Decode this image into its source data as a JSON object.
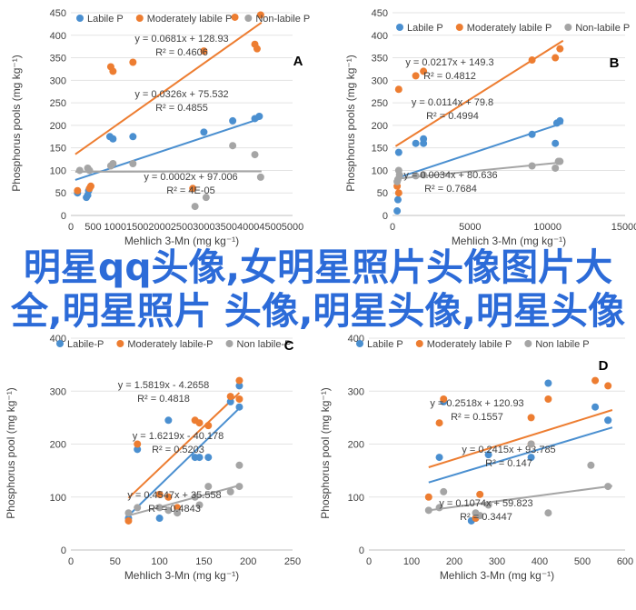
{
  "colors": {
    "labile": "#4a8fd0",
    "moderate": "#ed7d31",
    "nonlabile": "#a5a5a5"
  },
  "overlay_title": "明星qq头像,女明星照片头像图片大全,明星照片 头像,明星头像,明星头像",
  "chart_data": [
    {
      "type": "scatter",
      "panel": "A",
      "xlabel": "Mehlich 3-Mn (mg kg⁻¹)",
      "ylabel": "Phosphorus pools (mg kg⁻¹)",
      "xlim": [
        0,
        5000
      ],
      "ylim": [
        0,
        450
      ],
      "xticks": [
        0,
        500,
        1000,
        1500,
        2000,
        2500,
        3000,
        3500,
        4000,
        4500,
        5000
      ],
      "yticks": [
        0,
        50,
        100,
        150,
        200,
        250,
        300,
        350,
        400,
        450
      ],
      "grid": true,
      "legend": "top",
      "series": [
        {
          "name": "Labile P",
          "color_key": "labile",
          "x": [
            150,
            350,
            380,
            400,
            880,
            950,
            1400,
            3000,
            3650,
            4150,
            4250
          ],
          "y": [
            50,
            40,
            45,
            55,
            175,
            170,
            175,
            185,
            210,
            215,
            220
          ],
          "fit_x": [
            100,
            4300
          ],
          "fit_y": [
            78.8,
            215.7
          ],
          "equation": "y = 0.0326x + 75.532",
          "r2": "R² = 0.4855"
        },
        {
          "name": "Moderately labile P",
          "color_key": "moderate",
          "x": [
            150,
            420,
            450,
            900,
            950,
            1400,
            2750,
            3000,
            3700,
            4150,
            4200,
            4280
          ],
          "y": [
            55,
            60,
            65,
            330,
            320,
            340,
            60,
            365,
            440,
            380,
            370,
            445
          ],
          "fit_x": [
            100,
            4300
          ],
          "fit_y": [
            135.8,
            428.2
          ],
          "equation": "y = 0.0681x + 128.93",
          "r2": "R² = 0.4606"
        },
        {
          "name": "Non-labile P",
          "color_key": "nonlabile",
          "x": [
            200,
            380,
            420,
            900,
            950,
            1400,
            2800,
            3050,
            3650,
            4150,
            4280
          ],
          "y": [
            100,
            105,
            100,
            110,
            115,
            115,
            20,
            40,
            155,
            135,
            85
          ],
          "fit_x": [
            100,
            4300
          ],
          "fit_y": [
            97.0,
            97.9
          ],
          "equation": "y = 0.0002x + 97.006",
          "r2": "R² = 4E-05"
        }
      ]
    },
    {
      "type": "scatter",
      "panel": "B",
      "xlabel": "Mehlich 3-Mn (mg kg⁻¹)",
      "ylabel": "Phosphorus pools (mg kg⁻¹)",
      "xlim": [
        0,
        15000
      ],
      "ylim": [
        0,
        450
      ],
      "xticks": [
        0,
        5000,
        10000,
        15000
      ],
      "yticks": [
        0,
        50,
        100,
        150,
        200,
        250,
        300,
        350,
        400,
        450
      ],
      "grid": true,
      "legend": "top",
      "series": [
        {
          "name": "Labile P",
          "color_key": "labile",
          "x": [
            300,
            350,
            400,
            1500,
            2000,
            2000,
            9000,
            10500,
            10600,
            10800
          ],
          "y": [
            10,
            35,
            140,
            160,
            170,
            160,
            180,
            160,
            205,
            210
          ],
          "fit_x": [
            200,
            11000
          ],
          "fit_y": [
            82.1,
            205.2
          ],
          "equation": "y = 0.0114x + 79.8",
          "r2": "R² = 0.4994"
        },
        {
          "name": "Moderately labile P",
          "color_key": "moderate",
          "x": [
            300,
            400,
            400,
            1500,
            2000,
            9000,
            10500,
            10800
          ],
          "y": [
            65,
            50,
            280,
            310,
            320,
            345,
            350,
            370
          ],
          "fit_x": [
            200,
            11000
          ],
          "fit_y": [
            153.6,
            388.0
          ],
          "equation": "y = 0.0217x + 149.3",
          "r2": "R² = 0.4812"
        },
        {
          "name": "Non-labile P",
          "color_key": "nonlabile",
          "x": [
            300,
            350,
            400,
            450,
            1500,
            2000,
            9000,
            10500,
            10700,
            10800
          ],
          "y": [
            75,
            80,
            100,
            90,
            88,
            90,
            110,
            105,
            120,
            120
          ],
          "fit_x": [
            200,
            11000
          ],
          "fit_y": [
            81.3,
            118.0
          ],
          "equation": "y = 0.0034x + 80.636",
          "r2": "R² = 0.7684"
        }
      ]
    },
    {
      "type": "scatter",
      "panel": "C",
      "xlabel": "Mehlich 3-Mn (mg kg⁻¹)",
      "ylabel": "Phosphorus pool (mg kg⁻¹)",
      "xlim": [
        0,
        250
      ],
      "ylim": [
        0,
        400
      ],
      "xticks": [
        0,
        50,
        100,
        150,
        200,
        250
      ],
      "yticks": [
        0,
        100,
        200,
        300,
        400
      ],
      "grid": true,
      "legend": "top",
      "series": [
        {
          "name": "Labile-P",
          "color_key": "labile",
          "x": [
            65,
            75,
            100,
            110,
            140,
            145,
            155,
            180,
            190,
            190
          ],
          "y": [
            60,
            190,
            60,
            245,
            175,
            175,
            175,
            280,
            270,
            310
          ],
          "fit_x": [
            65,
            190
          ],
          "fit_y": [
            65.0,
            267.7
          ],
          "equation": "y = 1.6219x - 40.178",
          "r2": "R² = 0.5203"
        },
        {
          "name": "Moderately labile-P",
          "color_key": "moderate",
          "x": [
            65,
            75,
            100,
            110,
            120,
            140,
            145,
            155,
            180,
            190,
            190
          ],
          "y": [
            55,
            200,
            105,
            100,
            80,
            245,
            240,
            235,
            290,
            285,
            320
          ],
          "fit_x": [
            65,
            190
          ],
          "fit_y": [
            98.2,
            296.9
          ],
          "equation": "y = 1.5819x - 4.2658",
          "r2": "R² = 0.4818"
        },
        {
          "name": "Non labile-P",
          "color_key": "nonlabile",
          "x": [
            65,
            75,
            100,
            110,
            120,
            140,
            145,
            155,
            180,
            190,
            190
          ],
          "y": [
            70,
            80,
            80,
            75,
            70,
            100,
            85,
            120,
            110,
            120,
            160
          ],
          "fit_x": [
            65,
            190
          ],
          "fit_y": [
            65.1,
            121.9
          ],
          "equation": "y = 0.4547x + 35.558",
          "r2": "R² = 0.4843"
        }
      ]
    },
    {
      "type": "scatter",
      "panel": "D",
      "xlabel": "Mehlich 3-Mn (mg kg⁻¹)",
      "ylabel": "Phosphorus pool (mg kg⁻¹)",
      "xlim": [
        0,
        600
      ],
      "ylim": [
        0,
        400
      ],
      "xticks": [
        0,
        100,
        200,
        300,
        400,
        500,
        600
      ],
      "yticks": [
        0,
        100,
        200,
        300,
        400
      ],
      "grid": true,
      "legend": "top",
      "series": [
        {
          "name": "Labile P",
          "color_key": "labile",
          "x": [
            165,
            175,
            240,
            250,
            280,
            380,
            420,
            530,
            560,
            560
          ],
          "y": [
            175,
            280,
            55,
            60,
            180,
            175,
            315,
            270,
            245,
            245
          ],
          "fit_x": [
            140,
            570
          ],
          "fit_y": [
            127.6,
            231.4
          ],
          "equation": "y = 0.2415x + 93.785",
          "r2": "R² = 0.147"
        },
        {
          "name": "Moderately labile P",
          "color_key": "moderate",
          "x": [
            140,
            165,
            175,
            250,
            260,
            380,
            380,
            420,
            530,
            560
          ],
          "y": [
            100,
            240,
            285,
            60,
            105,
            200,
            250,
            285,
            320,
            310
          ],
          "fit_x": [
            140,
            570
          ],
          "fit_y": [
            156.2,
            264.4
          ],
          "equation": "y = 0.2518x + 120.93",
          "r2": "R² = 0.1557"
        },
        {
          "name": "Non labile P",
          "color_key": "nonlabile",
          "x": [
            140,
            165,
            175,
            250,
            260,
            280,
            380,
            420,
            520,
            560
          ],
          "y": [
            75,
            80,
            110,
            70,
            65,
            85,
            200,
            70,
            160,
            120
          ],
          "fit_x": [
            140,
            570
          ],
          "fit_y": [
            74.9,
            121.0
          ],
          "equation": "y = 0.1074x + 59.823",
          "r2": "R² = 0.3447"
        }
      ]
    }
  ]
}
